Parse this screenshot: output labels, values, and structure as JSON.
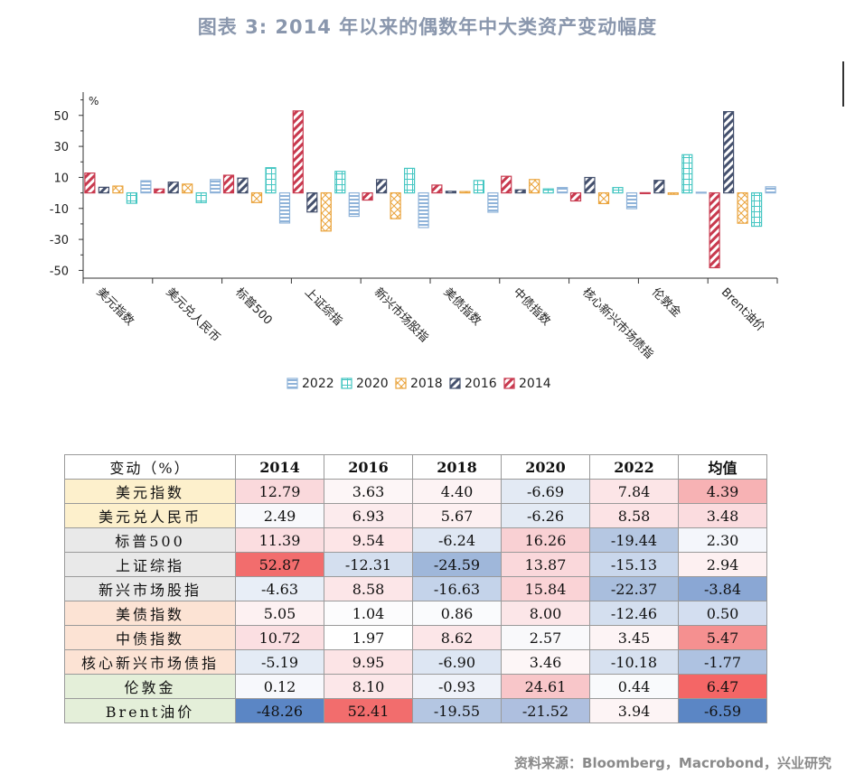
{
  "title": "图表 3:   2014 年以来的偶数年中大类资产变动幅度",
  "source": "资料来源：Bloomberg，Macrobond，兴业研究",
  "chart_data": {
    "type": "bar",
    "ylabel": "%",
    "ylim": [
      -55,
      65
    ],
    "yticks": [
      50,
      30,
      10,
      -10,
      -30,
      -50
    ],
    "categories": [
      "美元指数",
      "美元兑人民币",
      "标普500",
      "上证综指",
      "新兴市场股指",
      "美债指数",
      "中债指数",
      "核心新兴市场债指",
      "伦敦金",
      "Brent油价"
    ],
    "series": [
      {
        "name": "2014",
        "color": "#c8394e",
        "pattern": "diag-red",
        "values": [
          12.79,
          2.49,
          11.39,
          52.87,
          -4.63,
          5.05,
          10.72,
          -5.19,
          0.12,
          -48.26
        ]
      },
      {
        "name": "2016",
        "color": "#44506d",
        "pattern": "diag-navy",
        "values": [
          3.63,
          6.93,
          9.54,
          -12.31,
          8.58,
          1.04,
          1.97,
          9.95,
          8.1,
          52.41
        ]
      },
      {
        "name": "2018",
        "color": "#eaa33b",
        "pattern": "cross-orange",
        "values": [
          4.4,
          5.67,
          -6.24,
          -24.59,
          -16.63,
          0.86,
          8.62,
          -6.9,
          -0.93,
          -19.55
        ]
      },
      {
        "name": "2020",
        "color": "#45c6c2",
        "pattern": "grid-teal",
        "values": [
          -6.69,
          -6.26,
          16.26,
          13.87,
          15.84,
          8.0,
          2.57,
          3.46,
          24.61,
          -21.52
        ]
      },
      {
        "name": "2022",
        "color": "#8fb3d9",
        "pattern": "horiz-blue",
        "values": [
          7.84,
          8.58,
          -19.44,
          -15.13,
          -22.37,
          -12.46,
          3.45,
          -10.18,
          0.44,
          3.94
        ]
      }
    ],
    "legend_order": [
      "2022",
      "2020",
      "2018",
      "2016",
      "2014"
    ],
    "legend_position": "bottom"
  },
  "table": {
    "header_label": "变动（%）",
    "columns": [
      "2014",
      "2016",
      "2018",
      "2020",
      "2022",
      "均值"
    ],
    "rows": [
      {
        "label": "美元指数",
        "bg": "#fdf0cc",
        "cells": [
          "12.79",
          "3.63",
          "4.40",
          "-6.69",
          "7.84",
          "4.39"
        ],
        "colors": [
          "#fad9dc",
          "#fdf6f7",
          "#fdf3f4",
          "#e3eaf4",
          "#fce5e7",
          "#f7b2b4"
        ]
      },
      {
        "label": "美元兑人民币",
        "bg": "#fdf0cc",
        "cells": [
          "2.49",
          "6.93",
          "5.67",
          "-6.26",
          "8.58",
          "3.48"
        ],
        "colors": [
          "#f8f9fc",
          "#fcebed",
          "#fdf0f1",
          "#e3eaf4",
          "#fce3e5",
          "#fbdcdf"
        ]
      },
      {
        "label": "标普500",
        "bg": "#e9e9e9",
        "cells": [
          "11.39",
          "9.54",
          "-6.24",
          "16.26",
          "-19.44",
          "2.30"
        ],
        "colors": [
          "#fbdde0",
          "#fde5e7",
          "#dfe7f3",
          "#f9d0d3",
          "#b5c7e2",
          "#f4f6fb"
        ]
      },
      {
        "label": "上证综指",
        "bg": "#e9e9e9",
        "cells": [
          "52.87",
          "-12.31",
          "-24.59",
          "13.87",
          "-15.13",
          "2.94"
        ],
        "colors": [
          "#f26d6d",
          "#d4dfef",
          "#9fb7da",
          "#fad8db",
          "#c9d7ec",
          "#fdf0f1"
        ]
      },
      {
        "label": "新兴市场股指",
        "bg": "#e9e9e9",
        "cells": [
          "-4.63",
          "8.58",
          "-16.63",
          "15.84",
          "-22.37",
          "-3.84"
        ],
        "colors": [
          "#e8eef7",
          "#fce6e8",
          "#c4d3ea",
          "#fad3d6",
          "#a9bedd",
          "#8aa7d4"
        ]
      },
      {
        "label": "美债指数",
        "bg": "#fce3d4",
        "cells": [
          "5.05",
          "1.04",
          "0.86",
          "8.00",
          "-12.46",
          "0.50"
        ],
        "colors": [
          "#fdf1f2",
          "#fcfcfd",
          "#fafbfd",
          "#fce6e8",
          "#d4dfef",
          "#d3def0"
        ]
      },
      {
        "label": "中债指数",
        "bg": "#fce3d4",
        "cells": [
          "10.72",
          "1.97",
          "8.62",
          "2.57",
          "3.45",
          "5.47"
        ],
        "colors": [
          "#fbdfe2",
          "#ffffff",
          "#fce6e8",
          "#f9f9fb",
          "#fdf4f5",
          "#f59090"
        ]
      },
      {
        "label": "核心新兴市场债指",
        "bg": "#fce3d4",
        "cells": [
          "-5.19",
          "9.95",
          "-6.90",
          "3.46",
          "-10.18",
          "-1.77"
        ],
        "colors": [
          "#e4ebf5",
          "#fce4e6",
          "#dde6f3",
          "#fdf6f7",
          "#d7e1f0",
          "#aec2e1"
        ]
      },
      {
        "label": "伦敦金",
        "bg": "#e4efd9",
        "cells": [
          "0.12",
          "8.10",
          "-0.93",
          "24.61",
          "0.44",
          "6.47"
        ],
        "colors": [
          "#f7f8fc",
          "#fce7e9",
          "#eff2f9",
          "#f8c6c9",
          "#f9fafc",
          "#f46666"
        ]
      },
      {
        "label": "Brent油价",
        "bg": "#e4efd9",
        "cells": [
          "-48.26",
          "52.41",
          "-19.55",
          "-21.52",
          "3.94",
          "-6.59"
        ],
        "colors": [
          "#5b86c5",
          "#f26d6d",
          "#b4c6e2",
          "#aebfdf",
          "#fdf4f5",
          "#5b86c5"
        ]
      }
    ]
  }
}
